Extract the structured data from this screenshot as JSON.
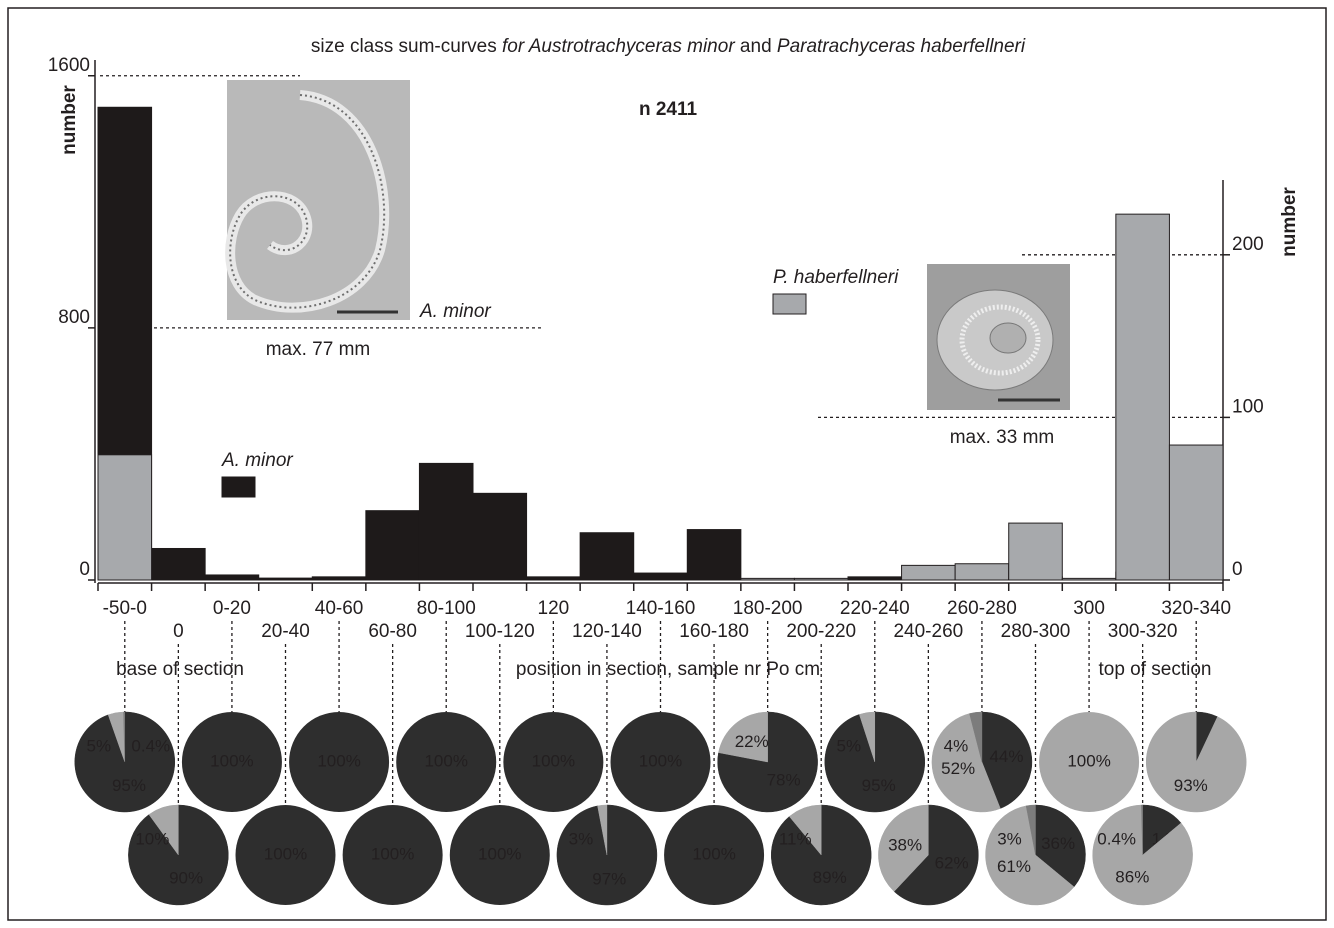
{
  "chart_data": [
    {
      "type": "bar",
      "title": [
        "size class sum-curves ",
        "for Austrotrachyceras minor",
        " and ",
        "Paratrachyceras haberfellneri"
      ],
      "annotations": [
        "n 2411",
        "A. minor",
        "max. 77 mm",
        "max. 33 mm",
        "base of section",
        "position in section, sample nr Po cm",
        "top of section"
      ],
      "ylabel": "number",
      "y2label": "number",
      "categories": [
        "-50-0",
        "0",
        "0-20",
        "20-40",
        "40-60",
        "60-80",
        "80-100",
        "100-120",
        "120",
        "120-140",
        "140-160",
        "160-180",
        "180-200",
        "200-220",
        "220-240",
        "240-260",
        "260-280",
        "280-300",
        "300",
        "300-320",
        "320-340"
      ],
      "series": [
        {
          "name": "A. minor",
          "color": "#1e1a1a",
          "axis": "y",
          "values": [
            1500,
            100,
            16,
            6,
            10,
            220,
            370,
            275,
            10,
            150,
            22,
            160,
            1,
            1,
            10,
            6,
            6,
            10,
            1,
            25,
            2
          ]
        },
        {
          "name": "P. haberfellneri",
          "color": "#a7a9ac",
          "axis": "y2",
          "values": [
            77,
            0,
            0,
            0,
            0,
            0,
            0,
            0,
            0,
            0,
            0,
            0,
            1,
            1,
            0,
            9,
            10,
            35,
            1,
            225,
            83
          ]
        }
      ],
      "ylim": [
        0,
        1650
      ],
      "yticks": [
        0,
        800,
        1600
      ],
      "y2lim": [
        0,
        246
      ],
      "y2ticks": [
        0,
        100,
        200
      ]
    },
    {
      "type": "pie",
      "pies": [
        {
          "values": [
            95,
            5,
            0.4
          ],
          "value_labels": [
            "95%",
            "5%",
            "0.4%"
          ],
          "colors": [
            "#2e2e2e",
            "#a7a7a7",
            "#7c7c7c"
          ]
        },
        {
          "values": [
            90,
            10
          ],
          "value_labels": [
            "90%",
            "10%"
          ],
          "colors": [
            "#2e2e2e",
            "#a7a7a7"
          ]
        },
        {
          "values": [
            100
          ],
          "value_labels": [
            "100%"
          ],
          "colors": [
            "#2e2e2e"
          ]
        },
        {
          "values": [
            100
          ],
          "value_labels": [
            "100%"
          ],
          "colors": [
            "#2e2e2e"
          ]
        },
        {
          "values": [
            100
          ],
          "value_labels": [
            "100%"
          ],
          "colors": [
            "#2e2e2e"
          ]
        },
        {
          "values": [
            100
          ],
          "value_labels": [
            "100%"
          ],
          "colors": [
            "#2e2e2e"
          ]
        },
        {
          "values": [
            100
          ],
          "value_labels": [
            "100%"
          ],
          "colors": [
            "#2e2e2e"
          ]
        },
        {
          "values": [
            100
          ],
          "value_labels": [
            "100%"
          ],
          "colors": [
            "#2e2e2e"
          ]
        },
        {
          "values": [
            100
          ],
          "value_labels": [
            "100%"
          ],
          "colors": [
            "#2e2e2e"
          ]
        },
        {
          "values": [
            97,
            3
          ],
          "value_labels": [
            "97%",
            "3%"
          ],
          "colors": [
            "#2e2e2e",
            "#a7a7a7"
          ]
        },
        {
          "values": [
            100
          ],
          "value_labels": [
            "100%"
          ],
          "colors": [
            "#2e2e2e"
          ]
        },
        {
          "values": [
            100
          ],
          "value_labels": [
            "100%"
          ],
          "colors": [
            "#2e2e2e"
          ]
        },
        {
          "values": [
            78,
            22
          ],
          "value_labels": [
            "78%",
            "22%"
          ],
          "colors": [
            "#2e2e2e",
            "#a7a7a7"
          ]
        },
        {
          "values": [
            89,
            11
          ],
          "value_labels": [
            "89%",
            "11%"
          ],
          "colors": [
            "#2e2e2e",
            "#a7a7a7"
          ]
        },
        {
          "values": [
            95,
            5
          ],
          "value_labels": [
            "95%",
            "5%"
          ],
          "colors": [
            "#2e2e2e",
            "#a7a7a7"
          ]
        },
        {
          "values": [
            62,
            38
          ],
          "value_labels": [
            "62%",
            "38%"
          ],
          "colors": [
            "#2e2e2e",
            "#a7a7a7"
          ]
        },
        {
          "values": [
            44,
            52,
            4
          ],
          "value_labels": [
            "44%",
            "52%",
            "4%"
          ],
          "colors": [
            "#2e2e2e",
            "#a7a7a7",
            "#7c7c7c"
          ]
        },
        {
          "values": [
            36,
            61,
            3
          ],
          "value_labels": [
            "36%",
            "61%",
            "3%"
          ],
          "colors": [
            "#2e2e2e",
            "#a7a7a7",
            "#7c7c7c"
          ]
        },
        {
          "values": [
            100
          ],
          "value_labels": [
            "100%"
          ],
          "colors": [
            "#a7a7a7"
          ]
        },
        {
          "values": [
            14,
            86,
            0.4
          ],
          "value_labels": [
            "14%",
            "86%",
            "0.4%"
          ],
          "colors": [
            "#2e2e2e",
            "#a7a7a7",
            "#7c7c7c"
          ]
        },
        {
          "values": [
            7,
            93
          ],
          "value_labels": [
            "7%",
            "93%"
          ],
          "colors": [
            "#2e2e2e",
            "#a7a7a7"
          ]
        }
      ]
    }
  ]
}
